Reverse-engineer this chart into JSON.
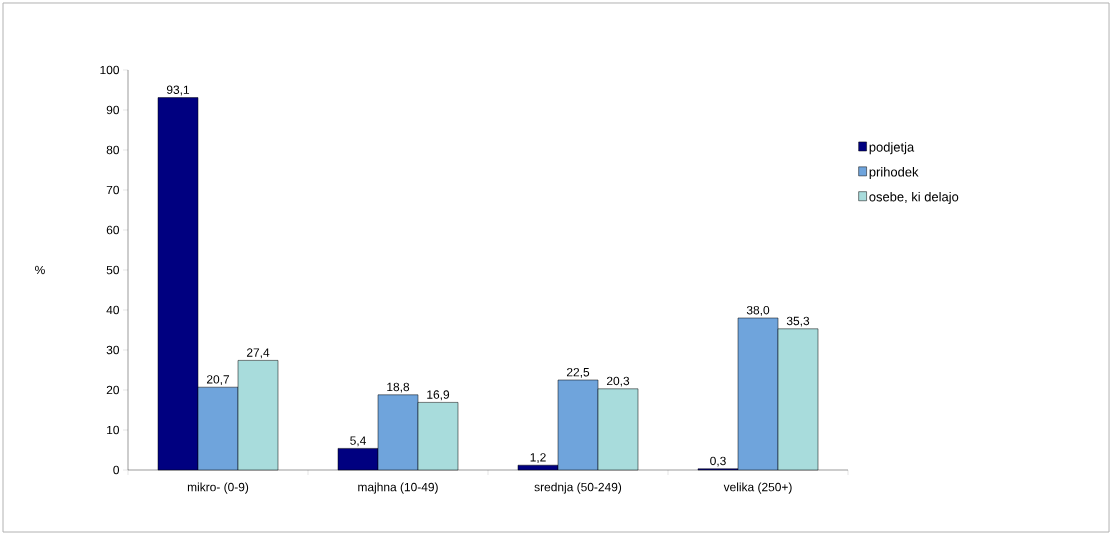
{
  "chart_data": {
    "type": "bar",
    "ylabel": "%",
    "categories": [
      "mikro- (0-9)",
      "majhna (10-49)",
      "srednja (50-249)",
      "velika (250+)"
    ],
    "series": [
      {
        "name": "podjetja",
        "color": "#000080",
        "values": [
          93.1,
          5.4,
          1.2,
          0.3
        ],
        "value_labels": [
          "93,1",
          "5,4",
          "1,2",
          "0,3"
        ]
      },
      {
        "name": "prihodek",
        "color": "#6fa4dc",
        "values": [
          20.7,
          18.8,
          22.5,
          38.0
        ],
        "value_labels": [
          "20,7",
          "18,8",
          "22,5",
          "38,0"
        ]
      },
      {
        "name": "osebe, ki delajo",
        "color": "#a8dcdc",
        "values": [
          27.4,
          16.9,
          20.3,
          35.3
        ],
        "value_labels": [
          "27,4",
          "16,9",
          "20,3",
          "35,3"
        ]
      }
    ],
    "ylim": [
      0,
      100
    ],
    "yticks": [
      0,
      10,
      20,
      30,
      40,
      50,
      60,
      70,
      80,
      90,
      100
    ],
    "legend": "right",
    "grid": false
  }
}
